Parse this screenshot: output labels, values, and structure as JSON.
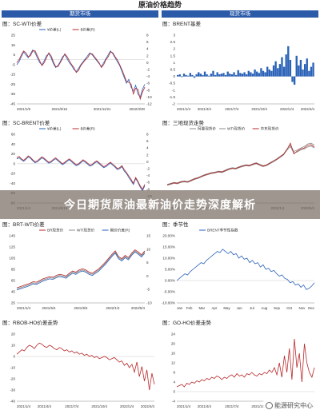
{
  "header": {
    "title": "原油价格趋势",
    "left_section": "期货市场",
    "right_section": "现货市场"
  },
  "banner": {
    "text": "今日期货原油最新油价走势深度解析"
  },
  "watermark": {
    "text": "能源研究中心"
  },
  "colors": {
    "blue": "#2a62b8",
    "red": "#b8282a",
    "gray": "#8c8c8c",
    "header": "#2a5aa8"
  },
  "chart_data": [
    {
      "id": "p1",
      "type": "line",
      "title": "图：SC-WTI价差",
      "legend": [
        "¥价差(L)",
        "$价差(R)"
      ],
      "y_left_ticks": [
        "25",
        "15",
        "5",
        "-5",
        "-15",
        "-25",
        "-35",
        "-45"
      ],
      "y_right_ticks": [
        "8",
        "6",
        "4",
        "2",
        "0",
        "-2",
        "-4",
        "-6",
        "-8",
        "-10",
        "-12"
      ],
      "x_ticks": [
        "2021/1/5",
        "2021/6/16",
        "2021/11/21",
        "2022/3/30"
      ],
      "ylim": [
        -45,
        25
      ],
      "series": [
        {
          "color": "blue",
          "values": [
            -5,
            -2,
            3,
            8,
            5,
            2,
            6,
            10,
            7,
            2,
            -3,
            -5,
            -1,
            4,
            6,
            2,
            -4,
            -8,
            -6,
            -2,
            3,
            5,
            1,
            -3,
            -6,
            -10,
            -12,
            -9,
            -5,
            -2,
            1,
            4,
            7,
            5,
            2,
            -1,
            -4,
            -7,
            -3,
            1,
            5,
            9,
            6,
            2,
            -2,
            -6,
            -12,
            -18,
            -24,
            -20,
            -28,
            -32,
            -26,
            -35,
            -38,
            -30,
            -25
          ]
        },
        {
          "color": "red",
          "values": [
            -3,
            0,
            5,
            9,
            7,
            3,
            4,
            9,
            9,
            4,
            -1,
            -6,
            -3,
            2,
            7,
            4,
            -2,
            -7,
            -7,
            -3,
            1,
            6,
            3,
            -1,
            -5,
            -8,
            -13,
            -11,
            -6,
            -3,
            0,
            2,
            6,
            6,
            3,
            0,
            -3,
            -8,
            -5,
            0,
            3,
            8,
            7,
            3,
            0,
            -5,
            -10,
            -16,
            -22,
            -23,
            -25,
            -35,
            -29,
            -30,
            -40,
            -33,
            -28
          ]
        }
      ]
    },
    {
      "id": "p2",
      "type": "bar",
      "title": "图：BRENT基差",
      "y_ticks": [
        "3",
        "2.5",
        "2",
        "1.5",
        "1",
        "0.5",
        "0",
        "-0.5",
        "-1",
        "-1.5",
        "-2"
      ],
      "x_ticks": [
        "2021/1/4",
        "2021/4/4",
        "2021/7/4",
        "2021/10/4",
        "2022/1/4",
        "2022/4/4"
      ],
      "ylim": [
        -2,
        3
      ],
      "values": [
        0.1,
        0.15,
        -0.05,
        0.2,
        0.1,
        0.05,
        0.25,
        0.1,
        -0.1,
        0.15,
        0.3,
        0.2,
        0.1,
        0.35,
        0.15,
        0.05,
        0.2,
        0.4,
        0.1,
        0.3,
        0.15,
        0.2,
        0.25,
        0.1,
        0.35,
        0.2,
        0.15,
        0.3,
        0.1,
        0.45,
        0.25,
        0.2,
        0.3,
        0.15,
        0.4,
        0.3,
        0.2,
        0.5,
        0.35,
        0.25,
        0.6,
        0.4,
        0.3,
        0.7,
        0.5,
        0.4,
        0.8,
        1.1,
        0.6,
        0.9,
        1.4,
        0.7,
        1.6,
        2.2,
        1.2,
        -0.4,
        -0.6,
        1.5,
        0.8,
        1.2,
        0.5,
        0.9,
        1.3,
        0.4,
        0.7,
        1.0
      ]
    },
    {
      "id": "p3",
      "type": "line",
      "title": "图：SC-BRENT价差",
      "legend": [
        "¥价差(L)",
        "$价差(R)"
      ],
      "y_left_ticks": [
        "60",
        "40",
        "20",
        "0",
        "-20",
        "-40",
        "-60",
        "-80"
      ],
      "y_right_ticks": [
        "8",
        "6",
        "4",
        "2",
        "0",
        "-2",
        "-4",
        "-6",
        "-8",
        "-10",
        "-12"
      ],
      "x_ticks": [
        "2021/1/4",
        "2021/6/15",
        "2021/11/21",
        "2022/3/30"
      ],
      "ylim": [
        -80,
        60
      ],
      "series": [
        {
          "color": "blue",
          "values": [
            10,
            12,
            8,
            5,
            9,
            14,
            11,
            6,
            2,
            4,
            8,
            12,
            9,
            5,
            1,
            3,
            7,
            10,
            6,
            2,
            -2,
            1,
            5,
            8,
            4,
            0,
            -4,
            -2,
            2,
            6,
            3,
            -1,
            -5,
            -3,
            1,
            4,
            0,
            -4,
            -8,
            -6,
            -2,
            1,
            -3,
            -7,
            -12,
            -10,
            -6,
            -15,
            -20,
            -28,
            -35,
            -42,
            -30,
            -38,
            -48,
            -55,
            -45
          ]
        },
        {
          "color": "red",
          "values": [
            12,
            15,
            10,
            7,
            11,
            16,
            13,
            8,
            4,
            6,
            10,
            14,
            11,
            7,
            3,
            5,
            9,
            12,
            8,
            4,
            0,
            3,
            7,
            10,
            6,
            2,
            -2,
            0,
            4,
            8,
            5,
            1,
            -3,
            -1,
            3,
            6,
            2,
            -2,
            -6,
            -4,
            0,
            3,
            -1,
            -5,
            -10,
            -8,
            -4,
            -12,
            -18,
            -25,
            -32,
            -40,
            -28,
            -36,
            -45,
            -52,
            -42
          ]
        }
      ]
    },
    {
      "id": "p4",
      "type": "line",
      "title": "图：三地现货走势",
      "legend": [
        "阿曼现货价",
        "WTI现货价",
        "中东现货价"
      ],
      "y_left_ticks": [],
      "y_right_ticks": [],
      "x_ticks": [
        "2020/7/4",
        "2021/1/4",
        "2021/7/4",
        "2022/1/4",
        "2022/5/4"
      ],
      "ylim": [
        0,
        140
      ],
      "series": [
        {
          "color": "gray",
          "values": [
            38,
            40,
            42,
            41,
            44,
            45,
            44,
            47,
            50,
            52,
            55,
            58,
            60,
            62,
            63,
            65,
            64,
            67,
            70,
            72,
            71,
            74,
            76,
            78,
            77,
            80,
            82,
            79,
            76,
            78,
            82,
            86,
            90,
            95,
            100,
            110,
            118,
            105,
            108,
            112,
            115,
            120,
            122,
            118
          ]
        },
        {
          "color": "gray",
          "values": [
            36,
            38,
            40,
            39,
            42,
            43,
            42,
            45,
            48,
            50,
            53,
            56,
            58,
            60,
            61,
            63,
            62,
            65,
            68,
            70,
            69,
            72,
            74,
            76,
            75,
            78,
            80,
            77,
            74,
            76,
            80,
            84,
            88,
            93,
            98,
            108,
            115,
            102,
            104,
            108,
            110,
            114,
            116,
            112
          ]
        },
        {
          "color": "red",
          "values": [
            37,
            39,
            41,
            40,
            43,
            44,
            43,
            46,
            49,
            51,
            54,
            57,
            59,
            61,
            62,
            64,
            63,
            66,
            69,
            71,
            70,
            73,
            75,
            77,
            76,
            79,
            81,
            78,
            75,
            77,
            81,
            85,
            89,
            94,
            99,
            109,
            122,
            100,
            106,
            110,
            112,
            117,
            119,
            114
          ]
        }
      ]
    },
    {
      "id": "p5",
      "type": "line",
      "title": "图：BRT-WTI价差",
      "legend": [
        "BR现货价",
        "WTI现货价",
        "期价价差(R)"
      ],
      "y_left_ticks": [
        "145",
        "125",
        "105",
        "85",
        "65",
        "45",
        "25"
      ],
      "y_right_ticks": [
        "15",
        "10",
        "5",
        "0",
        "-5",
        "-10"
      ],
      "x_ticks": [
        "2021/1/4",
        "2021/5/4",
        "2021/9/4",
        "2022/1/4",
        "2022/5/4"
      ],
      "ylim": [
        25,
        145
      ],
      "series": [
        {
          "color": "red",
          "values": [
            52,
            54,
            56,
            58,
            60,
            63,
            62,
            65,
            68,
            70,
            72,
            71,
            74,
            76,
            75,
            73,
            78,
            82,
            80,
            84,
            86,
            84,
            80,
            78,
            82,
            86,
            92,
            98,
            105,
            112,
            118,
            108,
            104,
            110,
            106,
            114,
            120,
            116,
            111,
            118
          ]
        },
        {
          "color": "gray",
          "values": [
            50,
            52,
            54,
            56,
            58,
            61,
            60,
            63,
            66,
            68,
            70,
            69,
            72,
            74,
            73,
            71,
            76,
            80,
            78,
            82,
            84,
            82,
            78,
            76,
            80,
            84,
            90,
            96,
            103,
            110,
            116,
            106,
            102,
            108,
            104,
            112,
            118,
            114,
            109,
            116
          ]
        },
        {
          "color": "blue",
          "values": [
            48,
            50,
            52,
            54,
            56,
            59,
            58,
            61,
            64,
            66,
            68,
            67,
            70,
            72,
            71,
            69,
            74,
            78,
            76,
            80,
            82,
            80,
            76,
            74,
            78,
            82,
            88,
            94,
            101,
            108,
            114,
            104,
            100,
            106,
            102,
            110,
            116,
            112,
            107,
            114
          ]
        }
      ]
    },
    {
      "id": "p6",
      "type": "line",
      "title": "图：季节性",
      "legend": [
        "BRENT季节性指数"
      ],
      "y_ticks": [
        "20.00%",
        "15.00%",
        "10.00%",
        "5.00%",
        "0.00%",
        "-5.00%",
        "-10.00%"
      ],
      "x_ticks": [
        "Jan",
        "Feb",
        "Mar",
        "Apr",
        "May",
        "Jun",
        "Jul",
        "Aug",
        "Sep",
        "Oct",
        "Nov",
        "Dec"
      ],
      "ylim": [
        -10,
        20
      ],
      "series": [
        {
          "color": "blue",
          "values": [
            0,
            1,
            2,
            3,
            2.5,
            4,
            5,
            6,
            7,
            8,
            7.5,
            9,
            10,
            11,
            12,
            13,
            12.5,
            14,
            13,
            12,
            13,
            11.5,
            12,
            10,
            11,
            9.5,
            10,
            8,
            9,
            7.5,
            8,
            6,
            7,
            5,
            5.5,
            4,
            4.5,
            3,
            2,
            2.5,
            1,
            0.5,
            -1,
            -0.5,
            -2,
            -1.5,
            -3,
            -2,
            -4,
            -3.5,
            -2.5,
            -1
          ]
        }
      ]
    },
    {
      "id": "p7",
      "type": "line",
      "title": "图：RBOB-HO价差走势",
      "y_ticks": [
        "20",
        "10",
        "0",
        "-10",
        "-20",
        "-30",
        "-40"
      ],
      "x_ticks": [
        "2021/1/4",
        "2021/4/4",
        "2021/7/4",
        "2021/10/4",
        "2022/1/4",
        "2022/4/4"
      ],
      "ylim": [
        -40,
        20
      ],
      "series": [
        {
          "color": "red",
          "values": [
            2,
            4,
            6,
            5,
            8,
            10,
            9,
            7,
            10,
            12,
            11,
            9,
            8,
            10,
            9,
            7,
            6,
            8,
            7,
            5,
            6,
            4,
            5,
            3,
            4,
            2,
            3,
            1,
            2,
            0,
            1,
            -1,
            0,
            -2,
            -1,
            0,
            -1,
            -3,
            -2,
            -1,
            -3,
            -5,
            -4,
            -8,
            -6,
            -10,
            -7,
            -14,
            -5,
            -18,
            -9,
            -22,
            -12,
            -30,
            -15,
            -25
          ]
        }
      ]
    },
    {
      "id": "p8",
      "type": "line",
      "title": "图：GO-HO价差走势",
      "y_ticks": [
        "24",
        "20",
        "16",
        "12",
        "8",
        "4",
        "0",
        "-4"
      ],
      "x_ticks": [
        "2021/1/4",
        "2021/4/4",
        "2021/7/4",
        "2021/10/4",
        "2022/1/4",
        "2022/4/4"
      ],
      "ylim": [
        -4,
        24
      ],
      "series": [
        {
          "color": "red",
          "values": [
            2,
            2.5,
            3,
            2,
            3.5,
            3,
            4,
            3.5,
            4.5,
            4,
            5,
            4.5,
            5.5,
            5,
            6,
            5.5,
            6.5,
            6,
            5,
            6,
            5.5,
            6.5,
            7,
            6,
            7.5,
            6.5,
            7,
            6,
            7.5,
            7,
            8,
            7,
            6.5,
            7.5,
            7,
            8,
            7.5,
            9,
            8,
            10,
            7,
            12,
            6,
            15,
            8,
            18,
            5,
            22,
            10,
            16,
            4,
            20,
            12,
            8,
            6,
            10
          ]
        }
      ]
    }
  ]
}
